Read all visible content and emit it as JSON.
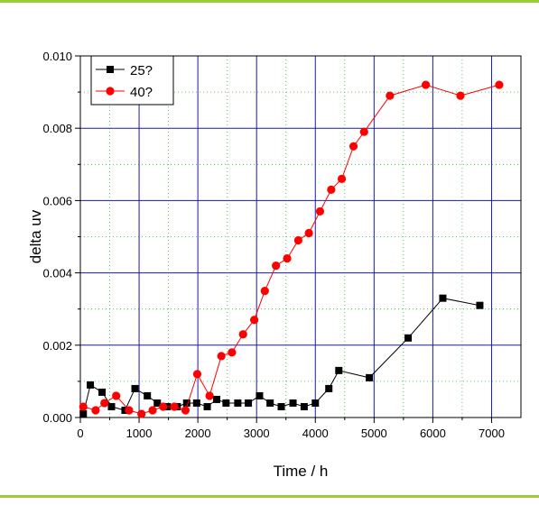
{
  "chart_data": {
    "type": "line",
    "xlabel": "Time / h",
    "ylabel": "delta uv",
    "xlim": [
      0,
      7500
    ],
    "ylim": [
      0,
      0.01
    ],
    "x_ticks": [
      0,
      1000,
      2000,
      3000,
      4000,
      5000,
      6000,
      7000
    ],
    "x_tick_labels": [
      "0",
      "1000",
      "2000",
      "3000",
      "4000",
      "5000",
      "6000",
      "7000"
    ],
    "y_ticks": [
      0,
      0.002,
      0.004,
      0.006,
      0.008,
      0.01
    ],
    "y_tick_labels": [
      "0.000",
      "0.002",
      "0.004",
      "0.006",
      "0.008",
      "0.010"
    ],
    "grid": true,
    "legend_position": "top-left",
    "series": [
      {
        "name": "25?",
        "color": "#000000",
        "marker": "square",
        "points": [
          [
            50,
            0.0001
          ],
          [
            170,
            0.0009
          ],
          [
            370,
            0.0007
          ],
          [
            530,
            0.0003
          ],
          [
            760,
            0.0002
          ],
          [
            930,
            0.0008
          ],
          [
            1140,
            0.0006
          ],
          [
            1310,
            0.0004
          ],
          [
            1480,
            0.0003
          ],
          [
            1650,
            0.0003
          ],
          [
            1810,
            0.0004
          ],
          [
            1980,
            0.0004
          ],
          [
            2160,
            0.0003
          ],
          [
            2320,
            0.0005
          ],
          [
            2480,
            0.0004
          ],
          [
            2680,
            0.0004
          ],
          [
            2860,
            0.0004
          ],
          [
            3050,
            0.0006
          ],
          [
            3230,
            0.0004
          ],
          [
            3420,
            0.0003
          ],
          [
            3620,
            0.0004
          ],
          [
            3810,
            0.0003
          ],
          [
            4000,
            0.0004
          ],
          [
            4230,
            0.0008
          ],
          [
            4400,
            0.0013
          ],
          [
            4920,
            0.0011
          ],
          [
            5580,
            0.0022
          ],
          [
            6170,
            0.0033
          ],
          [
            6800,
            0.0031
          ]
        ]
      },
      {
        "name": "40?",
        "color": "#ff0000",
        "marker": "circle",
        "points": [
          [
            50,
            0.0003
          ],
          [
            260,
            0.0002
          ],
          [
            410,
            0.0004
          ],
          [
            610,
            0.0006
          ],
          [
            830,
            0.0002
          ],
          [
            1040,
            0.0001
          ],
          [
            1230,
            0.0002
          ],
          [
            1410,
            0.0003
          ],
          [
            1600,
            0.0003
          ],
          [
            1790,
            0.0002
          ],
          [
            1990,
            0.0012
          ],
          [
            2200,
            0.0006
          ],
          [
            2400,
            0.0017
          ],
          [
            2580,
            0.0018
          ],
          [
            2770,
            0.0023
          ],
          [
            2960,
            0.0027
          ],
          [
            3140,
            0.0035
          ],
          [
            3330,
            0.0042
          ],
          [
            3520,
            0.0044
          ],
          [
            3710,
            0.0049
          ],
          [
            3890,
            0.0051
          ],
          [
            4080,
            0.0057
          ],
          [
            4270,
            0.0063
          ],
          [
            4450,
            0.0066
          ],
          [
            4650,
            0.0075
          ],
          [
            4830,
            0.0079
          ],
          [
            5270,
            0.0089
          ],
          [
            5880,
            0.0092
          ],
          [
            6470,
            0.0089
          ],
          [
            7130,
            0.0092
          ]
        ]
      }
    ]
  }
}
